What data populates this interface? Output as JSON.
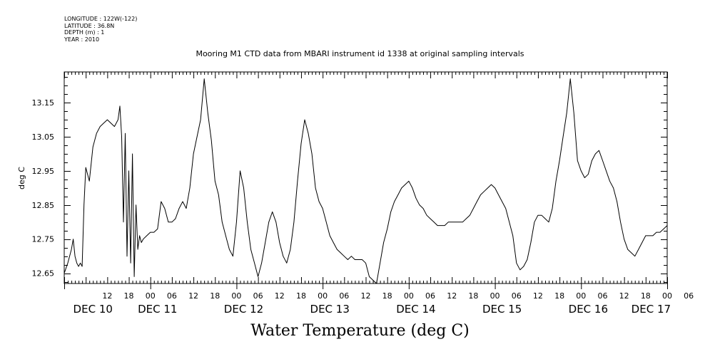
{
  "meta": {
    "longitude": "LONGITUDE : 122W(-122)",
    "latitude": "LATITUDE : 36.8N",
    "depth": "DEPTH (m) : 1",
    "year": "YEAR : 2010"
  },
  "chart_data": {
    "type": "line",
    "title": "Mooring M1 CTD data from MBARI instrument id 1338 at original sampling intervals",
    "xlabel": "Water Temperature (deg C)",
    "ylabel": "deg C",
    "ylim": [
      12.62,
      13.24
    ],
    "xlim_hours": [
      0,
      168
    ],
    "y_ticks": [
      "12.65",
      "12.75",
      "12.85",
      "12.95",
      "13.05",
      "13.15"
    ],
    "x_hour_labels": [
      "12",
      "18",
      "00",
      "06",
      "12",
      "18",
      "00",
      "06",
      "12",
      "18",
      "00",
      "06",
      "12",
      "18",
      "00",
      "06",
      "12",
      "18",
      "00",
      "06",
      "12",
      "18",
      "00",
      "06",
      "12",
      "18",
      "00",
      "06"
    ],
    "x_day_labels": [
      "DEC 10",
      "DEC 11",
      "DEC 12",
      "DEC 13",
      "DEC 14",
      "DEC 15",
      "DEC 16",
      "DEC 17"
    ],
    "grid": false,
    "series": [
      {
        "x": [
          0,
          1,
          2,
          2.5,
          3,
          3.5,
          4,
          4.5,
          5,
          5.5,
          6,
          7,
          8,
          9,
          10,
          11,
          12,
          13,
          14,
          15,
          15.5,
          16,
          16.5,
          17,
          17.5,
          18,
          18.5,
          19,
          19.5,
          20,
          20.5,
          21,
          21.5,
          22,
          23,
          24,
          25,
          26,
          27,
          28,
          29,
          30,
          31,
          32,
          33,
          34,
          35,
          36,
          37,
          38,
          39,
          40,
          41,
          42,
          43,
          44,
          45,
          46,
          47,
          48,
          49,
          50,
          51,
          52,
          53,
          54,
          55,
          56,
          57,
          58,
          59,
          60,
          61,
          62,
          63,
          64,
          65,
          66,
          67,
          68,
          69,
          70,
          71,
          72,
          73,
          74,
          75,
          76,
          77,
          78,
          79,
          80,
          81,
          82,
          83,
          84,
          85,
          86,
          87,
          88,
          89,
          90,
          91,
          92,
          93,
          94,
          95,
          96,
          97,
          98,
          99,
          100,
          101,
          102,
          103,
          104,
          105,
          106,
          107,
          108,
          109,
          110,
          111,
          112,
          113,
          114,
          115,
          116,
          117,
          118,
          119,
          120,
          121,
          122,
          123,
          124,
          125,
          126,
          127,
          128,
          129,
          130,
          131,
          132,
          133,
          134,
          135,
          136,
          137,
          138,
          139,
          140,
          141,
          142,
          143,
          144,
          145,
          146,
          147,
          148,
          149,
          150,
          151,
          152,
          153,
          154,
          155,
          156,
          157,
          158,
          159,
          160,
          161,
          162,
          163,
          164,
          165,
          166,
          167,
          168
        ],
        "values": [
          12.65,
          12.68,
          12.72,
          12.75,
          12.7,
          12.68,
          12.67,
          12.68,
          12.67,
          12.85,
          12.96,
          12.92,
          13.02,
          13.06,
          13.08,
          13.09,
          13.1,
          13.09,
          13.08,
          13.1,
          13.14,
          13.05,
          12.8,
          13.06,
          12.7,
          12.95,
          12.68,
          13.0,
          12.64,
          12.85,
          12.72,
          12.76,
          12.74,
          12.75,
          12.76,
          12.77,
          12.77,
          12.78,
          12.86,
          12.84,
          12.8,
          12.8,
          12.81,
          12.84,
          12.86,
          12.84,
          12.9,
          13.0,
          13.05,
          13.1,
          13.22,
          13.12,
          13.04,
          12.92,
          12.88,
          12.8,
          12.76,
          12.72,
          12.7,
          12.8,
          12.95,
          12.9,
          12.8,
          12.72,
          12.68,
          12.64,
          12.68,
          12.74,
          12.8,
          12.83,
          12.8,
          12.74,
          12.7,
          12.68,
          12.72,
          12.8,
          12.92,
          13.03,
          13.1,
          13.06,
          13.0,
          12.9,
          12.86,
          12.84,
          12.8,
          12.76,
          12.74,
          12.72,
          12.71,
          12.7,
          12.69,
          12.7,
          12.69,
          12.69,
          12.69,
          12.68,
          12.64,
          12.63,
          12.62,
          12.68,
          12.74,
          12.78,
          12.83,
          12.86,
          12.88,
          12.9,
          12.91,
          12.92,
          12.9,
          12.87,
          12.85,
          12.84,
          12.82,
          12.81,
          12.8,
          12.79,
          12.79,
          12.79,
          12.8,
          12.8,
          12.8,
          12.8,
          12.8,
          12.81,
          12.82,
          12.84,
          12.86,
          12.88,
          12.89,
          12.9,
          12.91,
          12.9,
          12.88,
          12.86,
          12.84,
          12.8,
          12.76,
          12.68,
          12.66,
          12.67,
          12.69,
          12.74,
          12.8,
          12.82,
          12.82,
          12.81,
          12.8,
          12.84,
          12.92,
          12.98,
          13.05,
          13.12,
          13.22,
          13.12,
          12.98,
          12.95,
          12.93,
          12.94,
          12.98,
          13.0,
          13.01,
          12.98,
          12.95,
          12.92,
          12.9,
          12.86,
          12.8,
          12.75,
          12.72,
          12.71,
          12.7,
          12.72,
          12.74,
          12.76,
          12.76,
          12.76,
          12.77,
          12.77,
          12.78,
          12.79
        ]
      }
    ]
  }
}
